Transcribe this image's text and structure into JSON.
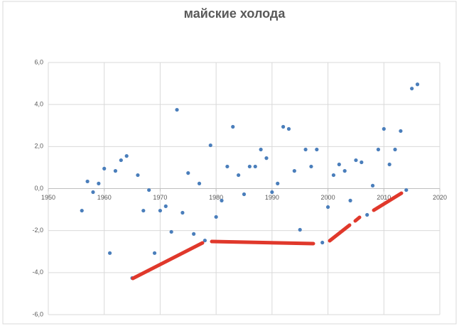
{
  "chart_data": {
    "type": "scatter",
    "title": "майские холода",
    "x": [
      1956,
      1957,
      1958,
      1959,
      1960,
      1961,
      1962,
      1963,
      1964,
      1965,
      1966,
      1967,
      1968,
      1969,
      1970,
      1971,
      1972,
      1973,
      1974,
      1975,
      1976,
      1977,
      1978,
      1979,
      1980,
      1981,
      1982,
      1983,
      1984,
      1985,
      1986,
      1987,
      1988,
      1989,
      1990,
      1991,
      1992,
      1993,
      1994,
      1995,
      1996,
      1997,
      1998,
      1999,
      2000,
      2001,
      2002,
      2003,
      2004,
      2005,
      2006,
      2007,
      2008,
      2009,
      2010,
      2011,
      2012,
      2013,
      2014,
      2015,
      2016
    ],
    "values": [
      -1.05,
      0.34,
      -0.17,
      0.24,
      0.95,
      -3.07,
      0.84,
      1.35,
      1.55,
      -4.26,
      0.64,
      -1.05,
      -0.07,
      -3.07,
      -1.05,
      -0.84,
      -2.06,
      3.75,
      -1.15,
      0.74,
      -2.16,
      0.24,
      -2.47,
      2.06,
      -1.35,
      -0.57,
      1.05,
      2.94,
      0.64,
      -0.27,
      1.05,
      1.05,
      1.86,
      1.45,
      -0.17,
      0.24,
      2.94,
      2.84,
      0.84,
      -1.96,
      1.86,
      1.05,
      1.86,
      -2.57,
      -0.88,
      0.64,
      1.15,
      0.84,
      -0.57,
      1.35,
      1.25,
      -1.25,
      0.14,
      1.86,
      2.84,
      1.15,
      1.86,
      2.74,
      -0.07,
      4.76,
      4.96
    ],
    "color": "#4a7ebb",
    "xlim": [
      1950,
      2020
    ],
    "xticks": [
      1950,
      1960,
      1970,
      1980,
      1990,
      2000,
      2010,
      2020
    ],
    "ylim": [
      -6,
      6
    ],
    "yticks": [
      {
        "value": -6,
        "label": "-6,0"
      },
      {
        "value": -4,
        "label": "-4,0"
      },
      {
        "value": -2,
        "label": "-2,0"
      },
      {
        "value": 0,
        "label": "0,0"
      },
      {
        "value": 2,
        "label": "2,0"
      },
      {
        "value": 4,
        "label": "4,0"
      },
      {
        "value": 6,
        "label": "6,0"
      }
    ],
    "grid": true
  }
}
